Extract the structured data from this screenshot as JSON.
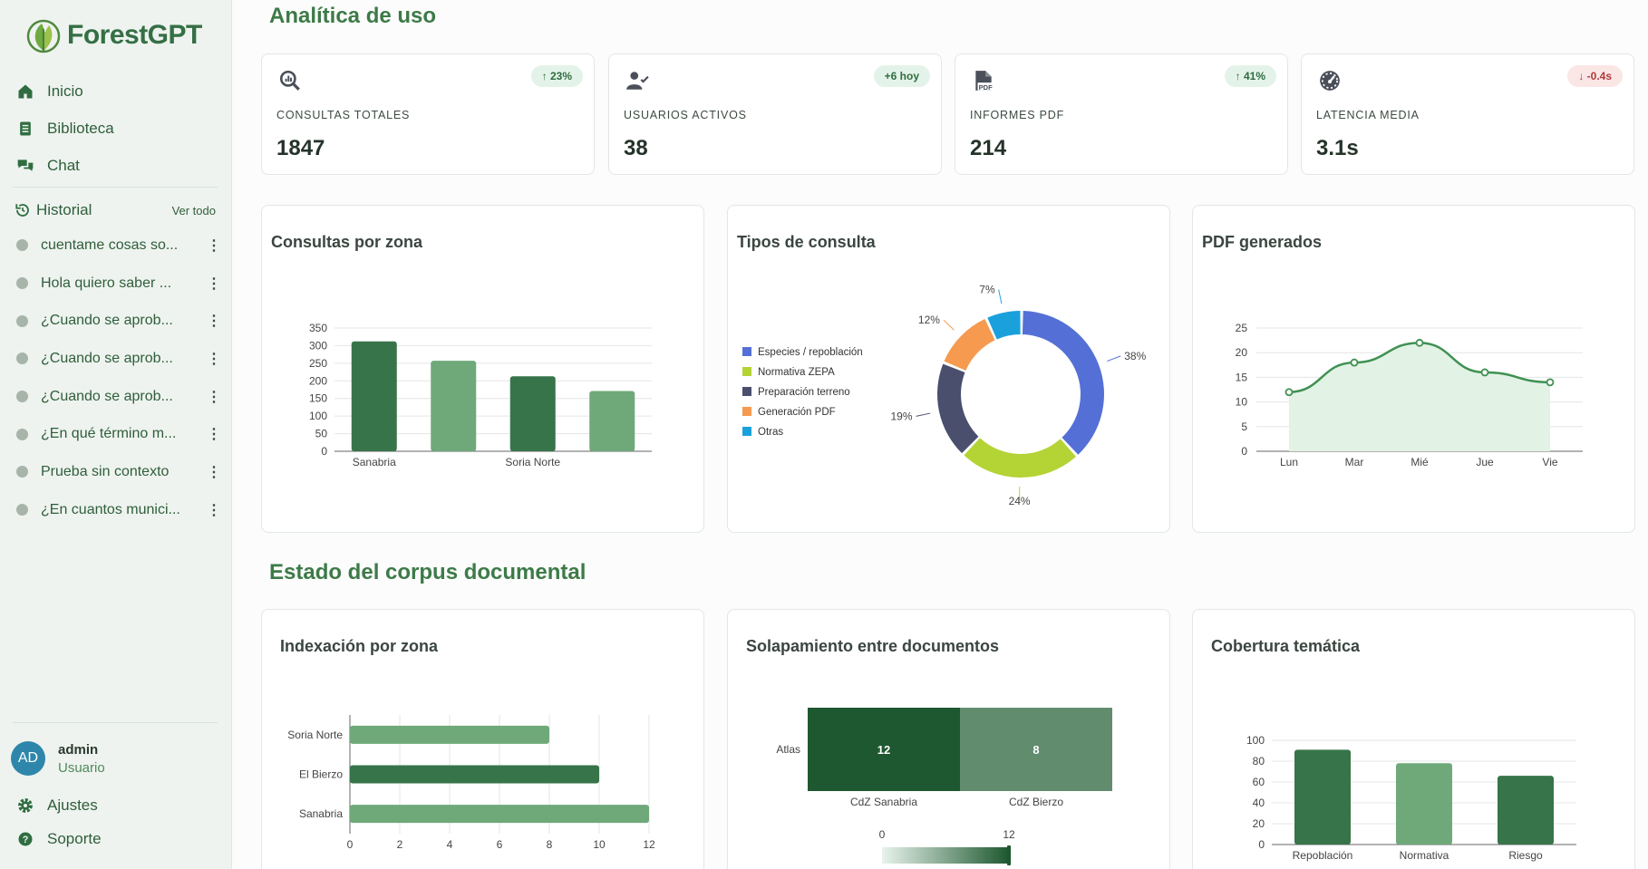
{
  "app": {
    "name": "ForestGPT"
  },
  "nav": [
    {
      "label": "Inicio",
      "icon": "home-icon"
    },
    {
      "label": "Biblioteca",
      "icon": "book-icon"
    },
    {
      "label": "Chat",
      "icon": "chat-icon"
    }
  ],
  "history": {
    "title": "Historial",
    "see_all": "Ver todo",
    "items": [
      "cuentame cosas so...",
      "Hola quiero saber ...",
      "¿Cuando se aprob...",
      "¿Cuando se aprob...",
      "¿Cuando se aprob...",
      "¿En qué término m...",
      "Prueba sin contexto",
      "¿En cuantos munici..."
    ]
  },
  "user": {
    "initials": "AD",
    "name": "admin",
    "role": "Usuario"
  },
  "footer_nav": [
    {
      "label": "Ajustes",
      "icon": "gear-icon"
    },
    {
      "label": "Soporte",
      "icon": "help-icon"
    }
  ],
  "sections": {
    "usage": "Analítica de uso",
    "corpus": "Estado del corpus documental"
  },
  "kpis": [
    {
      "label": "CONSULTAS TOTALES",
      "value": "1847",
      "badge": "↑ 23%",
      "trend": "up",
      "icon": "query-stats-icon"
    },
    {
      "label": "USUARIOS ACTIVOS",
      "value": "38",
      "badge": "+6 hoy",
      "trend": "up",
      "icon": "user-check-icon"
    },
    {
      "label": "INFORMES PDF",
      "value": "214",
      "badge": "↑ 41%",
      "trend": "up",
      "icon": "pdf-icon"
    },
    {
      "label": "LATENCIA MEDIA",
      "value": "3.1s",
      "badge": "↓ -0.4s",
      "trend": "down",
      "icon": "speedometer-icon"
    }
  ],
  "colors": {
    "dark_green": "#37744a",
    "light_green": "#6fa97a",
    "accent": "#3d7a48"
  },
  "chart_data": [
    {
      "title": "Consultas por zona",
      "type": "bar",
      "categories": [
        "Sanabria",
        "",
        "Soria Norte",
        ""
      ],
      "values": [
        312,
        257,
        213,
        171
      ],
      "yticks": [
        0,
        50,
        100,
        150,
        200,
        250,
        300,
        350
      ],
      "ylim": [
        0,
        350
      ],
      "bar_colors": [
        "#37744a",
        "#6fa97a",
        "#37744a",
        "#6fa97a"
      ]
    },
    {
      "title": "Tipos de consulta",
      "type": "pie",
      "labels": [
        "Especies / repoblación",
        "Normativa ZEPA",
        "Preparación terreno",
        "Generación PDF",
        "Otras"
      ],
      "values": [
        38,
        24,
        19,
        12,
        7
      ],
      "value_labels": [
        "38%",
        "24%",
        "19%",
        "12%",
        "7%"
      ],
      "colors": [
        "#5470d6",
        "#b4d334",
        "#4a4f6e",
        "#f59a4f",
        "#1aa1dc"
      ]
    },
    {
      "title": "PDF generados",
      "type": "area",
      "categories": [
        "Lun",
        "Mar",
        "Mié",
        "Jue",
        "Vie"
      ],
      "values": [
        12,
        18,
        22,
        16,
        14
      ],
      "yticks": [
        0,
        5,
        10,
        15,
        20,
        25
      ],
      "ylim": [
        0,
        25
      ]
    },
    {
      "title": "Indexación por zona",
      "type": "bar",
      "orientation": "horizontal",
      "categories": [
        "Soria Norte",
        "El Bierzo",
        "Sanabria"
      ],
      "values": [
        8,
        10,
        12
      ],
      "xticks": [
        0,
        2,
        4,
        6,
        8,
        10,
        12
      ],
      "xlim": [
        0,
        12
      ],
      "bar_colors": [
        "#6fa97a",
        "#37744a",
        "#6fa97a"
      ]
    },
    {
      "title": "Solapamiento entre documentos",
      "type": "heatmap",
      "rows": [
        "Atlas"
      ],
      "columns": [
        "CdZ Sanabria",
        "CdZ Bierzo"
      ],
      "values": [
        [
          12,
          8
        ]
      ],
      "scale": [
        0,
        12
      ]
    },
    {
      "title": "Cobertura temática",
      "type": "bar",
      "categories": [
        "Repoblación",
        "Normativa",
        "Riesgo"
      ],
      "values": [
        91,
        78,
        66
      ],
      "yticks": [
        0,
        20,
        40,
        60,
        80,
        100
      ],
      "ylim": [
        0,
        100
      ],
      "bar_colors": [
        "#37744a",
        "#6fa97a",
        "#37744a"
      ]
    }
  ]
}
